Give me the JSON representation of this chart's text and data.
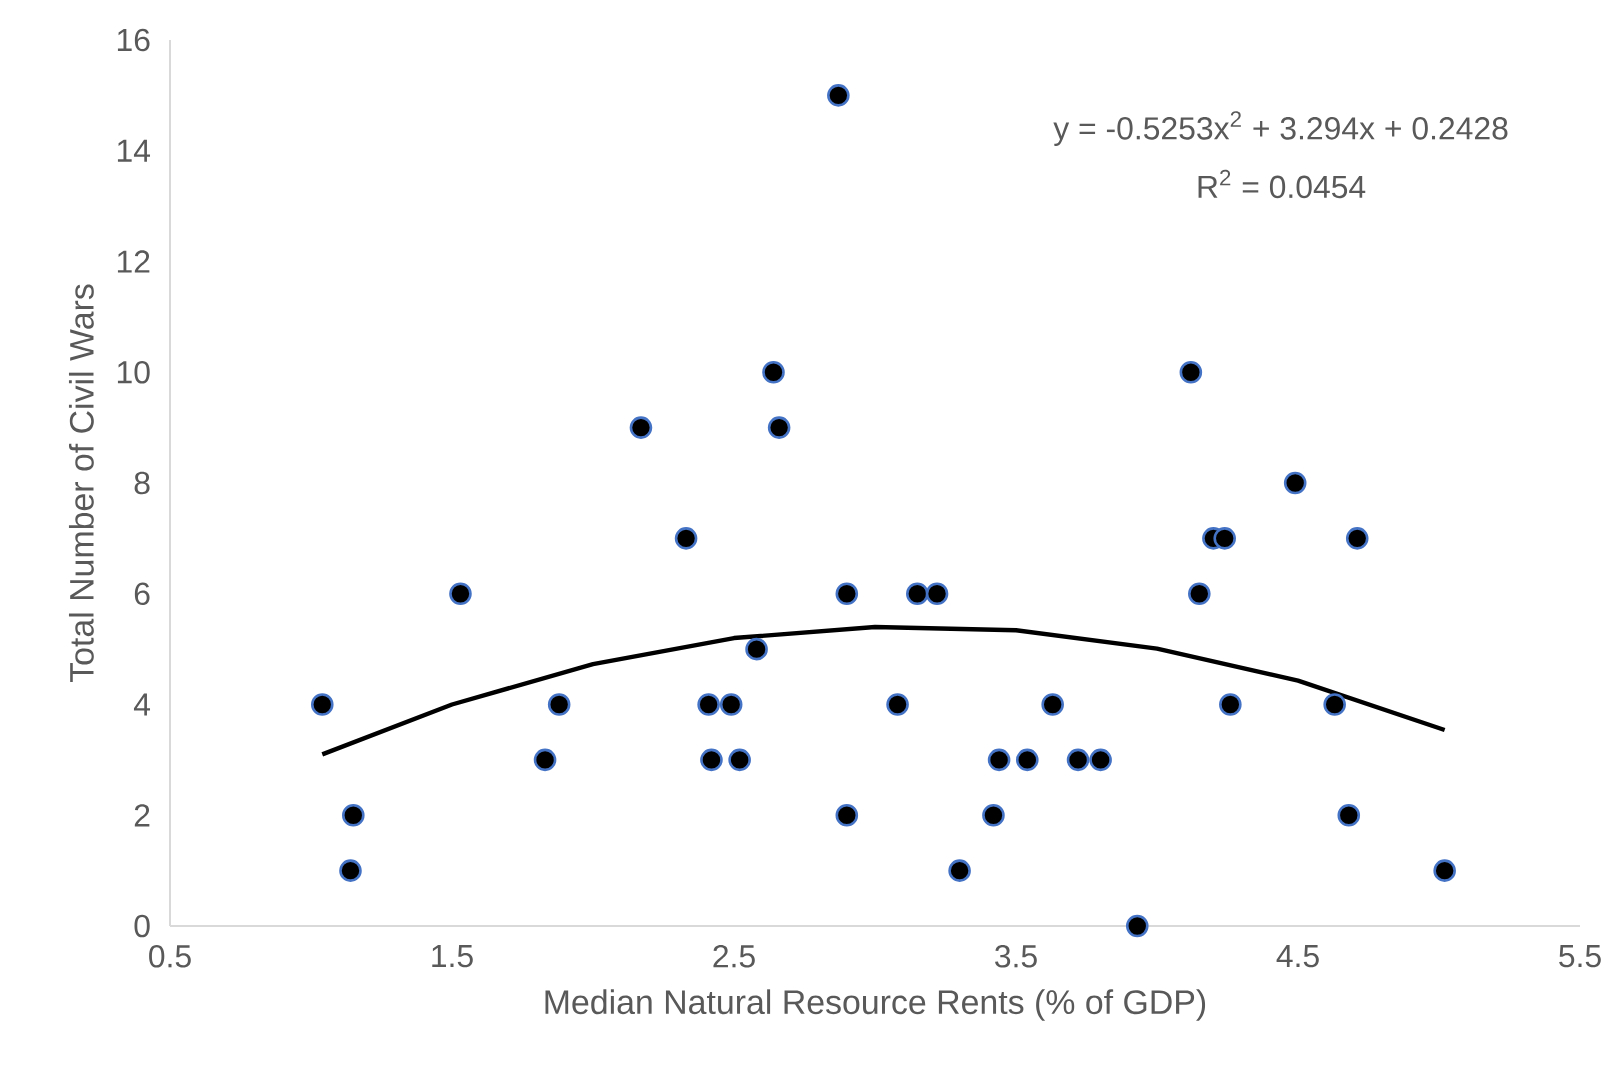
{
  "chart_data": {
    "type": "scatter",
    "xlabel": "Median Natural Resource Rents (% of GDP)",
    "ylabel": "Total Number of Civil Wars",
    "xlim": [
      0.5,
      5.5
    ],
    "xticks": [
      0.5,
      1.5,
      2.5,
      3.5,
      4.5,
      5.5
    ],
    "ylim": [
      0,
      16
    ],
    "yticks": [
      0,
      2,
      4,
      6,
      8,
      10,
      12,
      14,
      16
    ],
    "grid": false,
    "marker": "circle",
    "series": [
      {
        "color": "#000000",
        "x": [
          1.04,
          1.15,
          1.14,
          1.53,
          1.83,
          1.88,
          2.17,
          2.33,
          2.41,
          2.49,
          2.42,
          2.52,
          2.58,
          2.64,
          2.66,
          2.87,
          2.9,
          2.9,
          3.15,
          3.22,
          3.08,
          3.63,
          3.44,
          3.54,
          3.72,
          3.8,
          3.42,
          3.3,
          3.93,
          4.12,
          4.49,
          4.2,
          4.24,
          4.71,
          4.15,
          4.26,
          4.63,
          4.68,
          5.02
        ],
        "values": [
          4,
          2,
          1,
          6,
          3,
          4,
          9,
          7,
          4,
          4,
          3,
          3,
          5,
          10,
          9,
          15,
          6,
          2,
          6,
          6,
          4,
          4,
          3,
          3,
          3,
          3,
          2,
          1,
          0,
          10,
          8,
          7,
          7,
          7,
          6,
          4,
          4,
          2,
          1
        ]
      },
      {
        "type": "line",
        "color": "#000000",
        "marker": "none",
        "line_style": "solid",
        "x": [
          1.04,
          1.5,
          2,
          2.5,
          3,
          3.5,
          4,
          4.5,
          5.02
        ],
        "values": [
          3.1,
          4.0,
          4.73,
          5.2,
          5.4,
          5.34,
          5.01,
          4.43,
          3.54
        ]
      }
    ],
    "annotations": [
      "y = -0.5253x$^{2}$ + 3.294x + 0.2428",
      "R$^{2}$ = 0.0454"
    ]
  }
}
